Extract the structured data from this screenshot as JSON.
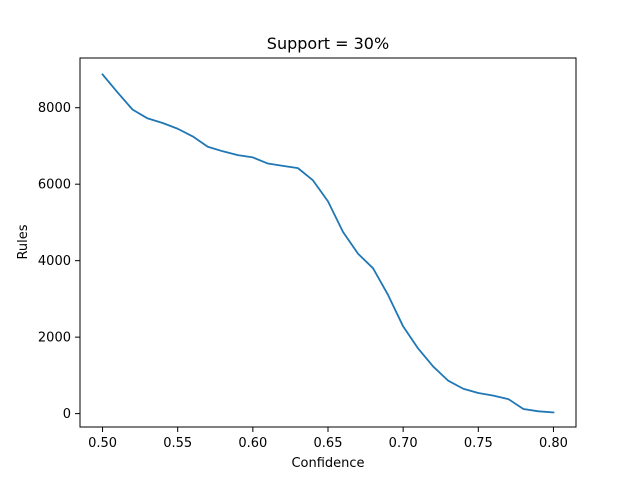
{
  "chart_data": {
    "type": "line",
    "title": "Support = 30%",
    "xlabel": "Confidence",
    "ylabel": "Rules",
    "xlim": [
      0.485,
      0.815
    ],
    "ylim": [
      -350,
      9300
    ],
    "xticks": [
      0.5,
      0.55,
      0.6,
      0.65,
      0.7,
      0.75,
      0.8
    ],
    "xtick_labels": [
      "0.50",
      "0.55",
      "0.60",
      "0.65",
      "0.70",
      "0.75",
      "0.80"
    ],
    "yticks": [
      0,
      2000,
      4000,
      6000,
      8000
    ],
    "ytick_labels": [
      "0",
      "2000",
      "4000",
      "6000",
      "8000"
    ],
    "grid": false,
    "series": [
      {
        "color": "#1f77b4",
        "x": [
          0.5,
          0.51,
          0.52,
          0.53,
          0.54,
          0.55,
          0.56,
          0.57,
          0.58,
          0.59,
          0.6,
          0.61,
          0.62,
          0.63,
          0.64,
          0.65,
          0.66,
          0.67,
          0.68,
          0.69,
          0.7,
          0.71,
          0.72,
          0.73,
          0.74,
          0.75,
          0.76,
          0.77,
          0.78,
          0.79,
          0.8
        ],
        "y": [
          8870,
          8400,
          7950,
          7720,
          7600,
          7450,
          7250,
          6980,
          6860,
          6760,
          6700,
          6540,
          6480,
          6420,
          6100,
          5550,
          4750,
          4180,
          3800,
          3100,
          2280,
          1700,
          1230,
          860,
          650,
          540,
          470,
          380,
          120,
          60,
          30
        ]
      }
    ]
  }
}
